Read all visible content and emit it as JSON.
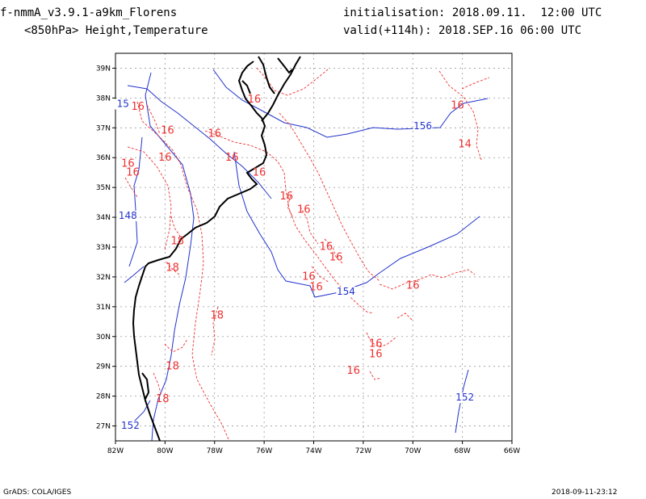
{
  "header": {
    "model": "f-nmmA_v3.9.1-a9km_Florens",
    "field": "<850hPa> Height,Temperature",
    "init": "initialisation: 2018.09.11.  12:00 UTC",
    "valid": "valid(+114h): 2018.SEP.16 06:00 UTC"
  },
  "footer": {
    "left": "GrADS: COLA/IGES",
    "right": "2018-09-11-23:12"
  },
  "colors": {
    "temperature": "#ee3030",
    "height": "#2233cc",
    "coast": "#000000",
    "grid": "#999999"
  },
  "map": {
    "lon_ticks": [
      "82W",
      "80W",
      "78W",
      "76W",
      "74W",
      "72W",
      "70W",
      "68W",
      "66W"
    ],
    "lat_ticks": [
      "27N",
      "28N",
      "29N",
      "30N",
      "31N",
      "32N",
      "33N",
      "34N",
      "35N",
      "36N",
      "37N",
      "38N",
      "39N"
    ],
    "lon_range": [
      -82,
      -66
    ],
    "lat_range": [
      26.5,
      39.5
    ],
    "temperature_labels": [
      {
        "text": "16",
        "lon": -81.1,
        "lat": 37.6
      },
      {
        "text": "16",
        "lon": -79.9,
        "lat": 36.8
      },
      {
        "text": "16",
        "lon": -78.0,
        "lat": 36.7
      },
      {
        "text": "16",
        "lon": -76.4,
        "lat": 37.85
      },
      {
        "text": "16",
        "lon": -77.3,
        "lat": 35.9
      },
      {
        "text": "16",
        "lon": -80.0,
        "lat": 35.9
      },
      {
        "text": "16",
        "lon": -81.5,
        "lat": 35.7
      },
      {
        "text": "16",
        "lon": -81.3,
        "lat": 35.4
      },
      {
        "text": "16",
        "lon": -76.2,
        "lat": 35.4
      },
      {
        "text": "16",
        "lon": -75.1,
        "lat": 34.6
      },
      {
        "text": "16",
        "lon": -74.4,
        "lat": 34.15
      },
      {
        "text": "16",
        "lon": -73.5,
        "lat": 32.9
      },
      {
        "text": "16",
        "lon": -73.1,
        "lat": 32.55
      },
      {
        "text": "16",
        "lon": -74.2,
        "lat": 31.9
      },
      {
        "text": "16",
        "lon": -73.9,
        "lat": 31.55
      },
      {
        "text": "16",
        "lon": -70.0,
        "lat": 31.6
      },
      {
        "text": "16",
        "lon": -71.5,
        "lat": 29.65
      },
      {
        "text": "16",
        "lon": -72.4,
        "lat": 28.75
      },
      {
        "text": "16",
        "lon": -71.5,
        "lat": 29.3
      },
      {
        "text": "16",
        "lon": -68.2,
        "lat": 37.65
      },
      {
        "text": "14",
        "lon": -67.9,
        "lat": 36.35
      },
      {
        "text": "18",
        "lon": -79.5,
        "lat": 33.1
      },
      {
        "text": "18",
        "lon": -79.7,
        "lat": 32.2
      },
      {
        "text": "18",
        "lon": -77.9,
        "lat": 30.6
      },
      {
        "text": "18",
        "lon": -79.7,
        "lat": 28.9
      },
      {
        "text": "18",
        "lon": -80.1,
        "lat": 27.8
      }
    ],
    "height_labels": [
      {
        "text": "15",
        "lon": -81.7,
        "lat": 37.7
      },
      {
        "text": "156",
        "lon": -69.6,
        "lat": 36.95
      },
      {
        "text": "148",
        "lon": -81.5,
        "lat": 33.95
      },
      {
        "text": "154",
        "lon": -72.7,
        "lat": 31.4
      },
      {
        "text": "152",
        "lon": -67.9,
        "lat": 27.85
      },
      {
        "text": "152",
        "lon": -81.4,
        "lat": 26.9
      }
    ]
  }
}
